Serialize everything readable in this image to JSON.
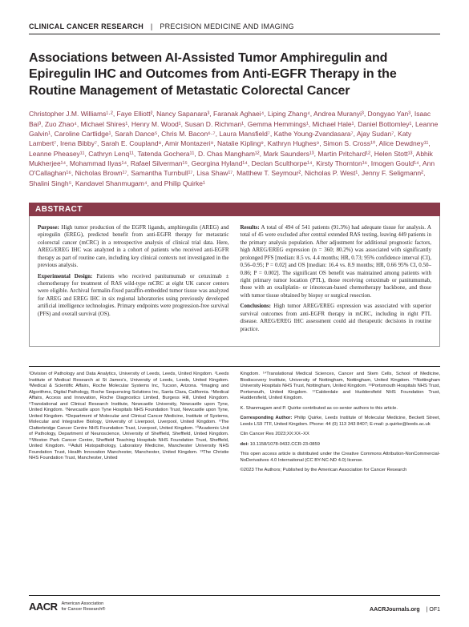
{
  "header": {
    "journal": "CLINICAL CANCER RESEARCH",
    "section": "PRECISION MEDICINE AND IMAGING"
  },
  "title": "Associations between AI-Assisted Tumor Amphiregulin and Epiregulin IHC and Outcomes from Anti-EGFR Therapy in the Routine Management of Metastatic Colorectal Cancer",
  "authors": "Christopher J.M. Williams¹·², Faye Elliott², Nancy Sapanara³, Faranak Aghaei⁴, Liping Zhang⁴, Andrea Muranyi³, Dongyao Yan³, Isaac Bai³, Zuo Zhao⁴, Michael Shires¹, Henry M. Wood¹, Susan D. Richman¹, Gemma Hemmings¹, Michael Hale¹, Daniel Bottomley¹, Leanne Galvin¹, Caroline Cartlidge¹, Sarah Dance⁵, Chris M. Bacon⁶·⁷, Laura Mansfield⁷, Kathe Young-Zvandasara⁷, Ajay Sudan⁷, Katy Lambert⁷, Irena Bibby⁷, Sarah E. Coupland⁸, Amir Montazeri⁹, Natalie Kipling⁹, Kathryn Hughes⁹, Simon S. Cross¹⁰, Alice Dewdney¹¹, Leanne Pheasey¹¹, Cathryn Lenq¹¹, Tatenda Gochera¹¹, D. Chas Mangham¹², Mark Saunders¹³, Martin Pritchard¹², Helen Stott¹³, Abhik Mukherjee¹⁴, Mohammad Ilyas¹⁴, Rafael Silverman¹⁵, Georgina Hyland¹⁴, Declan Sculthorpe¹⁴, Kirsty Thornton¹⁶, Imogen Gould¹⁴, Ann O'Callaghan¹⁶, Nicholas Brown¹⁷, Samantha Turnbull¹⁷, Lisa Shaw¹⁷, Matthew T. Seymour², Nicholas P. West¹, Jenny F. Seligmann², Shalini Singh⁵, Kandavel Shanmugam⁴, and Philip Quirke¹",
  "abstract": {
    "label": "ABSTRACT",
    "left": {
      "p1_label": "Purpose:",
      "p1_body": " High tumor production of the EGFR ligands, amphiregulin (AREG) and epiregulin (EREG), predicted benefit from anti-EGFR therapy for metastatic colorectal cancer (mCRC) in a retrospective analysis of clinical trial data. Here, AREG/EREG IHC was analyzed in a cohort of patients who received anti-EGFR therapy as part of routine care, including key clinical contexts not investigated in the previous analysis.",
      "p2_label": "Experimental Design:",
      "p2_body": " Patients who received panitumumab or cetuximab ± chemotherapy for treatment of RAS wild-type mCRC at eight UK cancer centers were eligible. Archival formalin-fixed paraffin-embedded tumor tissue was analyzed for AREG and EREG IHC in six regional laboratories using previously developed artificial intelligence technologies. Primary endpoints were progression-free survival (PFS) and overall survival (OS)."
    },
    "right": {
      "p1_label": "Results:",
      "p1_body": " A total of 494 of 541 patients (91.3%) had adequate tissue for analysis. A total of 45 were excluded after central extended RAS testing, leaving 449 patients in the primary analysis population. After adjustment for additional prognostic factors, high AREG/EREG expression (n = 360; 80.2%) was associated with significantly prolonged PFS [median: 8.5 vs. 4.4 months; HR, 0.73; 95% confidence interval (CI), 0.56–0.95; P = 0.02] and OS [median: 16.4 vs. 8.9 months; HR, 0.66 95% CI, 0.50–0.86; P = 0.002]. The significant OS benefit was maintained among patients with right primary tumor location (PTL), those receiving cetuximab or panitumumab, those with an oxaliplatin- or irinotecan-based chemotherapy backbone, and those with tumor tissue obtained by biopsy or surgical resection.",
      "p2_label": "Conclusions:",
      "p2_body": " High tumor AREG/EREG expression was associated with superior survival outcomes from anti-EGFR therapy in mCRC, including in right PTL disease. AREG/EREG IHC assessment could aid therapeutic decisions in routine practice."
    }
  },
  "affiliations": {
    "left": "¹Division of Pathology and Data Analytics, University of Leeds, Leeds, United Kingdom. ²Leeds Institute of Medical Research at St James's, University of Leeds, Leeds, United Kingdom. ³Medical & Scientific Affairs, Roche Molecular Systems Inc, Tucson, Arizona. ⁴Imaging and Algorithms, Digital Pathology, Roche Sequencing Solutions Inc, Santa Clara, California. ⁵Medical Affairs, Access and Innovation, Roche Diagnostics Limited, Burgess Hill, United Kingdom. ⁶Translational and Clinical Research Institute, Newcastle University, Newcastle upon Tyne, United Kingdom. ⁷Newcastle upon Tyne Hospitals NHS Foundation Trust, Newcastle upon Tyne, United Kingdom. ⁸Department of Molecular and Clinical Cancer Medicine, Institute of Systems, Molecular and Integrative Biology, University of Liverpool, Liverpool, United Kingdom. ⁹The Clatterbridge Cancer Centre NHS Foundation Trust, Liverpool, United Kingdom. ¹⁰Academic Unit of Pathology, Department of Neuroscience, University of Sheffield, Sheffield, United Kingdom. ¹¹Weston Park Cancer Centre, Sheffield Teaching Hospitals NHS Foundation Trust, Sheffield, United Kingdom. ¹²Adult Histopathology, Laboratory Medicine, Manchester University NHS Foundation Trust, Health Innovation Manchester, Manchester, United Kingdom. ¹³The Christie NHS Foundation Trust, Manchester, United",
    "right_top": "Kingdom. ¹⁴Translational Medical Sciences, Cancer and Stem Cells, School of Medicine, Biodiscovery Institute, University of Nottingham, Nottingham, United Kingdom. ¹⁵Nottingham University Hospitals NHS Trust, Nottingham, United Kingdom. ¹⁶Portsmouth Hospitals NHS Trust, Portsmouth, United Kingdom. ¹⁷Calderdale and Huddersfield NHS Foundation Trust, Huddersfield, United Kingdom.",
    "coauth": "K. Shanmugam and P. Quirke contributed as co-senior authors to this article.",
    "corr_label": "Corresponding Author:",
    "corr_body": " Philip Quirke, Leeds Institute of Molecular Medicine, Beckett Street, Leeds LS9 7TF, United Kingdom. Phone: 44 (0) 113 343 8407; E-mail: p.quirke@leeds.ac.uk",
    "citation": "Clin Cancer Res 2023;XX:XX–XX",
    "doi_label": "doi:",
    "doi_body": " 10.1158/1078-0432.CCR-23-0859",
    "license": "This open access article is distributed under the Creative Commons Attribution-NonCommercial-NoDerivatives 4.0 International (CC BY-NC-ND 4.0) license.",
    "copyright": "©2023 The Authors; Published by the American Association for Cancer Research"
  },
  "footer": {
    "logo_mark": "AACR",
    "logo_text1": "American Association",
    "logo_text2": "for Cancer Research®",
    "site": "AACRJournals.org",
    "page": "| OF1"
  },
  "colors": {
    "maroon": "#8a3a4a",
    "text": "#231f20"
  }
}
